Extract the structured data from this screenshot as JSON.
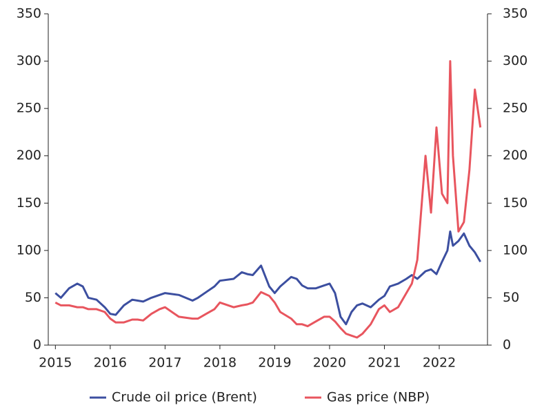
{
  "chart_data": {
    "type": "line",
    "x": [
      2015.0,
      2015.1,
      2015.25,
      2015.4,
      2015.5,
      2015.6,
      2015.75,
      2015.9,
      2016.0,
      2016.1,
      2016.25,
      2016.4,
      2016.5,
      2016.6,
      2016.75,
      2016.9,
      2017.0,
      2017.25,
      2017.5,
      2017.6,
      2017.75,
      2017.9,
      2018.0,
      2018.25,
      2018.4,
      2018.5,
      2018.6,
      2018.75,
      2018.9,
      2019.0,
      2019.1,
      2019.3,
      2019.4,
      2019.5,
      2019.6,
      2019.75,
      2019.9,
      2020.0,
      2020.1,
      2020.2,
      2020.3,
      2020.4,
      2020.5,
      2020.6,
      2020.75,
      2020.9,
      2021.0,
      2021.1,
      2021.25,
      2021.4,
      2021.5,
      2021.6,
      2021.75,
      2021.85,
      2021.95,
      2022.05,
      2022.15,
      2022.2,
      2022.25,
      2022.35,
      2022.45,
      2022.55,
      2022.65,
      2022.75
    ],
    "series": [
      {
        "name": "Crude oil price (Brent)",
        "color": "#3c4fa0",
        "values": [
          55,
          50,
          60,
          65,
          62,
          50,
          48,
          40,
          33,
          32,
          42,
          48,
          47,
          46,
          50,
          53,
          55,
          53,
          47,
          50,
          56,
          62,
          68,
          70,
          77,
          75,
          74,
          84,
          62,
          55,
          62,
          72,
          70,
          63,
          60,
          60,
          63,
          65,
          55,
          30,
          22,
          35,
          42,
          44,
          40,
          48,
          52,
          62,
          65,
          70,
          74,
          70,
          78,
          80,
          75,
          88,
          100,
          120,
          105,
          110,
          118,
          105,
          98,
          88
        ]
      },
      {
        "name": "Gas price (NBP)",
        "color": "#e8555e",
        "values": [
          45,
          42,
          42,
          40,
          40,
          38,
          38,
          35,
          28,
          24,
          24,
          27,
          27,
          26,
          33,
          38,
          40,
          30,
          28,
          28,
          33,
          38,
          45,
          40,
          42,
          43,
          45,
          56,
          52,
          45,
          35,
          28,
          22,
          22,
          20,
          25,
          30,
          30,
          25,
          18,
          12,
          10,
          8,
          12,
          22,
          38,
          42,
          35,
          40,
          55,
          65,
          90,
          200,
          140,
          230,
          160,
          150,
          300,
          200,
          120,
          130,
          185,
          270,
          230
        ]
      }
    ],
    "xlim": [
      2014.87,
      2022.88
    ],
    "xticks": [
      2015,
      2016,
      2017,
      2018,
      2019,
      2020,
      2021,
      2022
    ],
    "ylim": [
      0,
      350
    ],
    "yticks": [
      0,
      50,
      100,
      150,
      200,
      250,
      300,
      350
    ],
    "y2lim": [
      0,
      350
    ],
    "y2ticks": [
      0,
      50,
      100,
      150,
      200,
      250,
      300,
      350
    ],
    "legend": "bottom"
  }
}
